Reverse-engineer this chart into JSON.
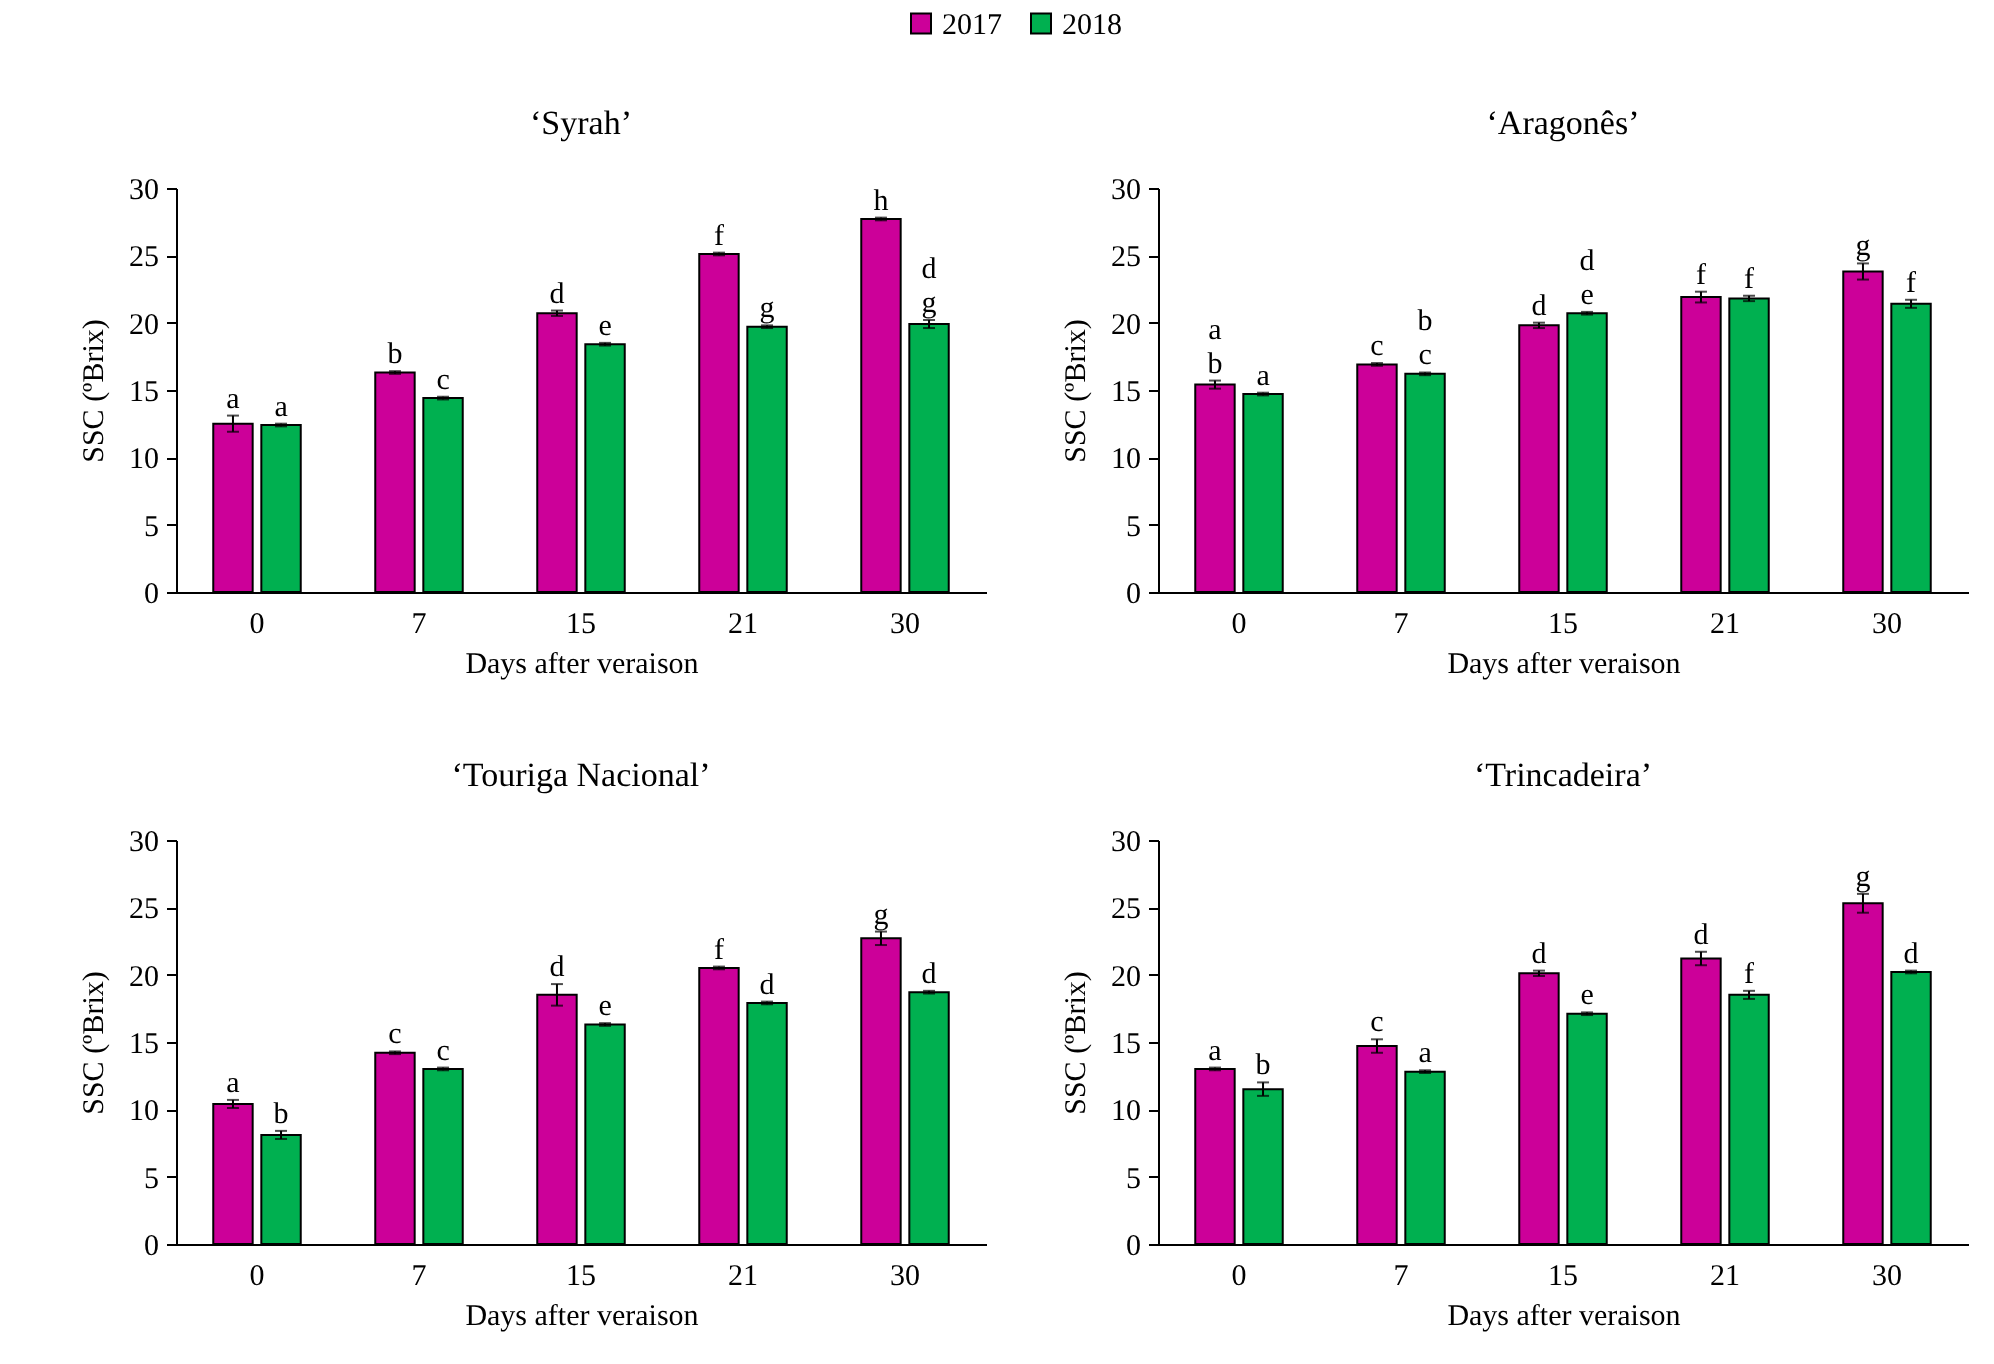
{
  "chart_data": [
    {
      "type": "bar",
      "title": "‘Syrah’",
      "xlabel": "Days after veraison",
      "ylabel": "SSC (ºBrix)",
      "categories": [
        "0",
        "7",
        "15",
        "21",
        "30"
      ],
      "legend": "top",
      "ylim": [
        0,
        30
      ],
      "yticks": [
        0,
        5,
        10,
        15,
        20,
        25,
        30
      ],
      "series": [
        {
          "name": "2017",
          "color": "#cc0099",
          "values": [
            12.5,
            16.3,
            20.7,
            25.1,
            27.7
          ],
          "errors": [
            0.6,
            0.1,
            0.2,
            0.1,
            0.1
          ],
          "value_labels": [
            "a",
            "b",
            "d",
            "f",
            "h"
          ]
        },
        {
          "name": "2018",
          "color": "#00b050",
          "values": [
            12.4,
            14.4,
            18.4,
            19.7,
            19.9
          ],
          "errors": [
            0.1,
            0.1,
            0.1,
            0.1,
            0.3
          ],
          "value_labels": [
            "a",
            "c",
            "e",
            "g",
            "d\ng"
          ]
        }
      ]
    },
    {
      "type": "bar",
      "title": "‘Aragonês’",
      "xlabel": "Days after veraison",
      "ylabel": "SSC (ºBrix)",
      "categories": [
        "0",
        "7",
        "15",
        "21",
        "30"
      ],
      "ylim": [
        0,
        30
      ],
      "yticks": [
        0,
        5,
        10,
        15,
        20,
        25,
        30
      ],
      "series": [
        {
          "name": "2017",
          "color": "#cc0099",
          "values": [
            15.4,
            16.9,
            19.8,
            21.9,
            23.8
          ],
          "errors": [
            0.3,
            0.1,
            0.2,
            0.4,
            0.6
          ],
          "value_labels": [
            "a\nb",
            "c",
            "d",
            "f",
            "g"
          ]
        },
        {
          "name": "2018",
          "color": "#00b050",
          "values": [
            14.7,
            16.2,
            20.7,
            21.8,
            21.4
          ],
          "errors": [
            0.1,
            0.1,
            0.1,
            0.2,
            0.3
          ],
          "value_labels": [
            "a",
            "b\nc",
            "d\ne",
            "f",
            "f"
          ]
        }
      ]
    },
    {
      "type": "bar",
      "title": "‘Touriga Nacional’",
      "xlabel": "Days after veraison",
      "ylabel": "SSC (ºBrix)",
      "categories": [
        "0",
        "7",
        "15",
        "21",
        "30"
      ],
      "ylim": [
        0,
        30
      ],
      "yticks": [
        0,
        5,
        10,
        15,
        20,
        25,
        30
      ],
      "series": [
        {
          "name": "2017",
          "color": "#cc0099",
          "values": [
            10.4,
            14.2,
            18.5,
            20.5,
            22.7
          ],
          "errors": [
            0.3,
            0.1,
            0.8,
            0.1,
            0.5
          ],
          "value_labels": [
            "a",
            "c",
            "d",
            "f",
            "g"
          ]
        },
        {
          "name": "2018",
          "color": "#00b050",
          "values": [
            8.1,
            13.0,
            16.3,
            17.9,
            18.7
          ],
          "errors": [
            0.3,
            0.1,
            0.1,
            0.1,
            0.1
          ],
          "value_labels": [
            "b",
            "c",
            "e",
            "d",
            "d"
          ]
        }
      ]
    },
    {
      "type": "bar",
      "title": "‘Trincadeira’",
      "xlabel": "Days after veraison",
      "ylabel": "SSC (ºBrix)",
      "categories": [
        "0",
        "7",
        "15",
        "21",
        "30"
      ],
      "ylim": [
        0,
        30
      ],
      "yticks": [
        0,
        5,
        10,
        15,
        20,
        25,
        30
      ],
      "series": [
        {
          "name": "2017",
          "color": "#cc0099",
          "values": [
            13.0,
            14.7,
            20.1,
            21.2,
            25.3
          ],
          "errors": [
            0.1,
            0.5,
            0.2,
            0.5,
            0.7
          ],
          "value_labels": [
            "a",
            "c",
            "d",
            "d",
            "g"
          ]
        },
        {
          "name": "2018",
          "color": "#00b050",
          "values": [
            11.5,
            12.8,
            17.1,
            18.5,
            20.2
          ],
          "errors": [
            0.5,
            0.1,
            0.1,
            0.3,
            0.1
          ],
          "value_labels": [
            "b",
            "a",
            "e",
            "f",
            "d"
          ]
        }
      ]
    }
  ]
}
